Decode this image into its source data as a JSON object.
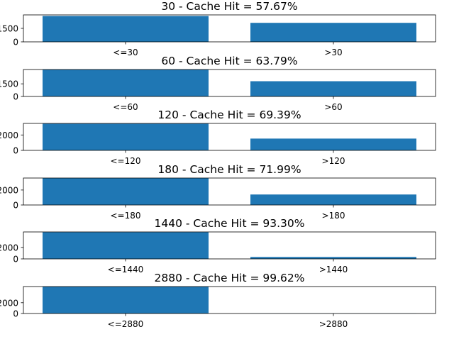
{
  "chart_data": [
    {
      "type": "bar",
      "title": "30 - Cache Hit = 57.67%",
      "categories": [
        "<=30",
        ">30"
      ],
      "values": [
        2882,
        2116
      ],
      "ylim": [
        0,
        3000
      ],
      "yticks": [
        0,
        1500
      ],
      "ytick_labels": [
        "0",
        "1500"
      ],
      "color": "#1f77b4",
      "grid": false
    },
    {
      "type": "bar",
      "title": "60 - Cache Hit = 63.79%",
      "categories": [
        "<=60",
        ">60"
      ],
      "values": [
        3189,
        1810
      ],
      "ylim": [
        0,
        3200
      ],
      "yticks": [
        0,
        1500
      ],
      "ytick_labels": [
        "0",
        "1500"
      ],
      "color": "#1f77b4",
      "grid": false
    },
    {
      "type": "bar",
      "title": "120 - Cache Hit = 69.39%",
      "categories": [
        "<=120",
        ">120"
      ],
      "values": [
        3469,
        1530
      ],
      "ylim": [
        0,
        3500
      ],
      "yticks": [
        0,
        2000
      ],
      "ytick_labels": [
        "0",
        "2000"
      ],
      "color": "#1f77b4",
      "grid": false
    },
    {
      "type": "bar",
      "title": "180 - Cache Hit = 71.99%",
      "categories": [
        "<=180",
        ">180"
      ],
      "values": [
        3599,
        1400
      ],
      "ylim": [
        0,
        3600
      ],
      "yticks": [
        0,
        2000
      ],
      "ytick_labels": [
        "0",
        "2000"
      ],
      "color": "#1f77b4",
      "grid": false
    },
    {
      "type": "bar",
      "title": "1440 - Cache Hit = 93.30%",
      "categories": [
        "<=1440",
        ">1440"
      ],
      "values": [
        4665,
        335
      ],
      "ylim": [
        0,
        4700
      ],
      "yticks": [
        0,
        2000
      ],
      "ytick_labels": [
        "0",
        "2000"
      ],
      "color": "#1f77b4",
      "grid": false
    },
    {
      "type": "bar",
      "title": "2880 - Cache Hit = 99.62%",
      "categories": [
        "<=2880",
        ">2880"
      ],
      "values": [
        4981,
        19
      ],
      "ylim": [
        0,
        5000
      ],
      "yticks": [
        0,
        2000
      ],
      "ytick_labels": [
        "0",
        "2000"
      ],
      "color": "#1f77b4",
      "grid": false
    }
  ]
}
